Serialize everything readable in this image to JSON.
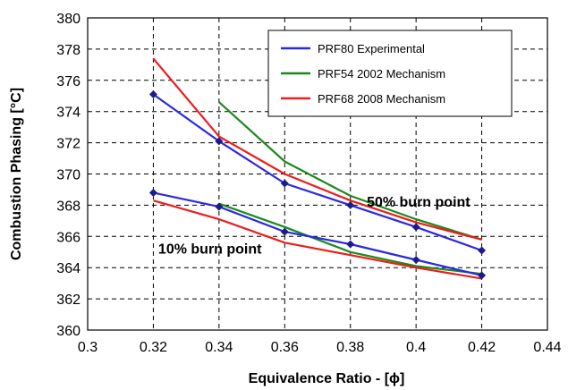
{
  "chart_data": {
    "type": "line",
    "title": "",
    "xlabel": "Equivalence Ratio - [ϕ]",
    "ylabel": "Combustion Phasing  [°C]",
    "xlim": [
      0.3,
      0.44
    ],
    "ylim": [
      360,
      380
    ],
    "xticks": [
      0.3,
      0.32,
      0.34,
      0.36,
      0.38,
      0.4,
      0.42,
      0.44
    ],
    "xtick_labels": [
      "0.3",
      "0.32",
      "0.34",
      "0.36",
      "0.38",
      "0.4",
      "0.42",
      "0.44"
    ],
    "yticks": [
      360,
      362,
      364,
      366,
      368,
      370,
      372,
      374,
      376,
      378,
      380
    ],
    "ytick_labels": [
      "360",
      "362",
      "364",
      "366",
      "368",
      "370",
      "372",
      "374",
      "376",
      "378",
      "380"
    ],
    "grid": true,
    "legend_position": "top-right",
    "legend": [
      {
        "label": "PRF80 Experimental",
        "color": "#2a2ae0"
      },
      {
        "label": "PRF54 2002 Mechanism",
        "color": "#1a8a1a"
      },
      {
        "label": "PRF68 2008 Mechanism",
        "color": "#ee1c1c"
      }
    ],
    "annotations": [
      {
        "text": "50% burn point",
        "x": 0.385,
        "y": 367.9
      },
      {
        "text": "10% burn point",
        "x": 0.3215,
        "y": 364.9
      }
    ],
    "series": [
      {
        "name": "PRF80 Experimental",
        "group": "50% burn point",
        "color": "#2a2ae0",
        "marker": "diamond",
        "x": [
          0.32,
          0.34,
          0.36,
          0.38,
          0.4,
          0.42
        ],
        "y": [
          375.1,
          372.1,
          369.4,
          368.0,
          366.6,
          365.1
        ]
      },
      {
        "name": "PRF54 2002 Mechanism",
        "group": "50% burn point",
        "color": "#1a8a1a",
        "marker": "none",
        "x": [
          0.34,
          0.36,
          0.38,
          0.4,
          0.42
        ],
        "y": [
          374.6,
          370.8,
          368.6,
          367.1,
          365.8
        ]
      },
      {
        "name": "PRF68 2008 Mechanism",
        "group": "50% burn point",
        "color": "#ee1c1c",
        "marker": "none",
        "x": [
          0.32,
          0.34,
          0.36,
          0.38,
          0.4,
          0.42
        ],
        "y": [
          377.4,
          372.4,
          370.0,
          368.3,
          366.9,
          365.8
        ]
      },
      {
        "name": "PRF80 Experimental",
        "group": "10% burn point",
        "color": "#2a2ae0",
        "marker": "diamond",
        "x": [
          0.32,
          0.34,
          0.36,
          0.38,
          0.4,
          0.42
        ],
        "y": [
          368.8,
          367.9,
          366.3,
          365.5,
          364.5,
          363.5
        ]
      },
      {
        "name": "PRF54 2002 Mechanism",
        "group": "10% burn point",
        "color": "#1a8a1a",
        "marker": "none",
        "x": [
          0.34,
          0.36,
          0.38,
          0.4,
          0.42
        ],
        "y": [
          368.1,
          366.6,
          365.0,
          364.1,
          363.6
        ]
      },
      {
        "name": "PRF68 2008 Mechanism",
        "group": "10% burn point",
        "color": "#ee1c1c",
        "marker": "none",
        "x": [
          0.32,
          0.34,
          0.36,
          0.38,
          0.4,
          0.42
        ],
        "y": [
          368.3,
          367.1,
          365.6,
          364.8,
          364.0,
          363.3
        ]
      }
    ]
  }
}
